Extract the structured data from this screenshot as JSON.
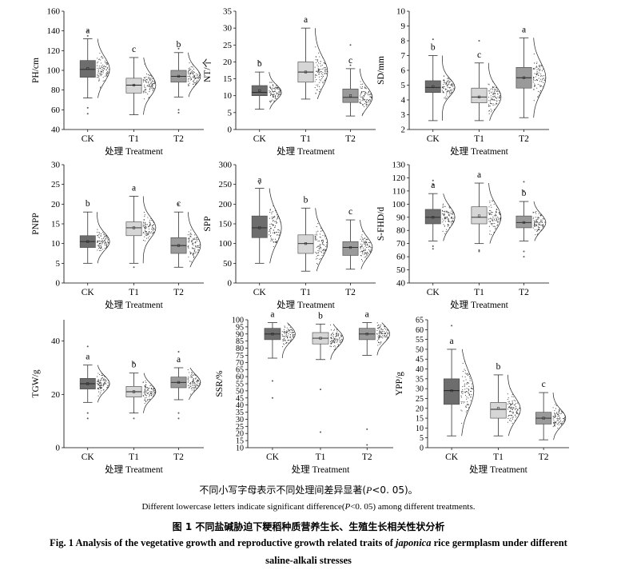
{
  "box_colors": [
    "#6d6d6d",
    "#d6d6d6",
    "#9a9a9a"
  ],
  "caption": {
    "note_cn_pre": "不同小写字母表示不同处理间差异显著(",
    "note_cn_p": "P",
    "note_cn_post": "<0. 05)。",
    "note_en_pre": "Different lowercase letters indicate significant difference(",
    "note_en_p": "P",
    "note_en_post": "<0. 05) among different treatments.",
    "fig_cn": "图 1   不同盐碱胁迫下粳稻种质营养生长、生殖生长相关性状分析",
    "fig_en_pre": "Fig. 1    Analysis of the vegetative growth and reproductive growth related traits of ",
    "fig_en_italic": "japonica",
    "fig_en_post": " rice germplasm under different",
    "fig_en_line2": "saline-alkali stresses"
  },
  "chart_data": [
    {
      "type": "box",
      "ylabel": "PH/cm",
      "xlabel": "处理  Treatment",
      "categories": [
        "CK",
        "T1",
        "T2"
      ],
      "ylim": [
        40,
        160
      ],
      "yticks": [
        40,
        60,
        80,
        100,
        120,
        140,
        160
      ],
      "boxes": [
        {
          "whisker_low": 72,
          "q1": 93,
          "median": 101,
          "q3": 110,
          "whisker_high": 132,
          "mean": 102,
          "letter": "a",
          "outliers": [
            62,
            56,
            135,
            140
          ]
        },
        {
          "whisker_low": 55,
          "q1": 77,
          "median": 85,
          "q3": 92,
          "whisker_high": 113,
          "mean": 85,
          "letter": "c",
          "outliers": []
        },
        {
          "whisker_low": 73,
          "q1": 88,
          "median": 94,
          "q3": 100,
          "whisker_high": 118,
          "mean": 94,
          "letter": "b",
          "outliers": [
            60,
            57,
            122
          ]
        }
      ]
    },
    {
      "type": "box",
      "ylabel": "NT/个",
      "xlabel": "处理  Treatment",
      "categories": [
        "CK",
        "T1",
        "T2"
      ],
      "ylim": [
        0,
        35
      ],
      "yticks": [
        0,
        5,
        10,
        15,
        20,
        25,
        30,
        35
      ],
      "boxes": [
        {
          "whisker_low": 6,
          "q1": 10,
          "median": 11,
          "q3": 13,
          "whisker_high": 17,
          "mean": 11.5,
          "letter": "b",
          "outliers": [
            20
          ]
        },
        {
          "whisker_low": 9,
          "q1": 14,
          "median": 17,
          "q3": 20,
          "whisker_high": 30,
          "mean": 17,
          "letter": "a",
          "outliers": []
        },
        {
          "whisker_low": 4,
          "q1": 8,
          "median": 9.5,
          "q3": 12,
          "whisker_high": 18,
          "mean": 10,
          "letter": "c",
          "outliers": [
            19,
            25
          ]
        }
      ]
    },
    {
      "type": "box",
      "ylabel": "SD/mm",
      "xlabel": "处理  Treatment",
      "categories": [
        "CK",
        "T1",
        "T2"
      ],
      "ylim": [
        2,
        10
      ],
      "yticks": [
        2,
        3,
        4,
        5,
        6,
        7,
        8,
        9,
        10
      ],
      "boxes": [
        {
          "whisker_low": 2.6,
          "q1": 4.5,
          "median": 4.85,
          "q3": 5.3,
          "whisker_high": 7,
          "mean": 4.9,
          "letter": "b",
          "outliers": [
            8.1
          ]
        },
        {
          "whisker_low": 2.6,
          "q1": 3.8,
          "median": 4.2,
          "q3": 4.8,
          "whisker_high": 6.5,
          "mean": 4.2,
          "letter": "c",
          "outliers": [
            8
          ]
        },
        {
          "whisker_low": 2.8,
          "q1": 4.8,
          "median": 5.5,
          "q3": 6.2,
          "whisker_high": 8.2,
          "mean": 5.5,
          "letter": "a",
          "outliers": []
        }
      ]
    },
    {
      "type": "box",
      "ylabel": "PNPP",
      "xlabel": "处理  Treatment",
      "categories": [
        "CK",
        "T1",
        "T2"
      ],
      "ylim": [
        0,
        30
      ],
      "yticks": [
        0,
        5,
        10,
        15,
        20,
        25,
        30
      ],
      "boxes": [
        {
          "whisker_low": 5,
          "q1": 9,
          "median": 10.5,
          "q3": 12,
          "whisker_high": 18,
          "mean": 10.5,
          "letter": "b",
          "outliers": []
        },
        {
          "whisker_low": 5,
          "q1": 12,
          "median": 14,
          "q3": 15.5,
          "whisker_high": 22,
          "mean": 14,
          "letter": "a",
          "outliers": [
            4
          ]
        },
        {
          "whisker_low": 4,
          "q1": 7.5,
          "median": 9.5,
          "q3": 11.5,
          "whisker_high": 18,
          "mean": 9.5,
          "letter": "c",
          "outliers": [
            20
          ]
        }
      ]
    },
    {
      "type": "box",
      "ylabel": "SPP",
      "xlabel": "处理  Treatment",
      "categories": [
        "CK",
        "T1",
        "T2"
      ],
      "ylim": [
        0,
        300
      ],
      "yticks": [
        0,
        50,
        100,
        150,
        200,
        250,
        300
      ],
      "boxes": [
        {
          "whisker_low": 50,
          "q1": 115,
          "median": 140,
          "q3": 170,
          "whisker_high": 240,
          "mean": 140,
          "letter": "a",
          "outliers": [
            252
          ]
        },
        {
          "whisker_low": 30,
          "q1": 75,
          "median": 100,
          "q3": 122,
          "whisker_high": 190,
          "mean": 100,
          "letter": "b",
          "outliers": []
        },
        {
          "whisker_low": 35,
          "q1": 70,
          "median": 90,
          "q3": 105,
          "whisker_high": 160,
          "mean": 90,
          "letter": "c",
          "outliers": []
        }
      ]
    },
    {
      "type": "box",
      "ylabel": "S-FHD/d",
      "xlabel": "处理  Treatment",
      "categories": [
        "CK",
        "T1",
        "T2"
      ],
      "ylim": [
        40,
        130
      ],
      "yticks": [
        40,
        50,
        60,
        70,
        80,
        90,
        100,
        110,
        120,
        130
      ],
      "boxes": [
        {
          "whisker_low": 72,
          "q1": 85,
          "median": 90,
          "q3": 96,
          "whisker_high": 108,
          "mean": 90,
          "letter": "a",
          "outliers": [
            68,
            66,
            115,
            118
          ]
        },
        {
          "whisker_low": 70,
          "q1": 85,
          "median": 90,
          "q3": 98,
          "whisker_high": 116,
          "mean": 91,
          "letter": "a",
          "outliers": [
            65,
            64
          ]
        },
        {
          "whisker_low": 72,
          "q1": 82,
          "median": 86,
          "q3": 91,
          "whisker_high": 102,
          "mean": 86,
          "letter": "b",
          "outliers": [
            64,
            60,
            110,
            117
          ]
        }
      ]
    },
    {
      "type": "box",
      "ylabel": "TGW/g",
      "xlabel": "处理  Treatment",
      "categories": [
        "CK",
        "T1",
        "T2"
      ],
      "ylim": [
        0,
        48
      ],
      "yticks": [
        0,
        20,
        40
      ],
      "boxes": [
        {
          "whisker_low": 17,
          "q1": 22,
          "median": 24,
          "q3": 26,
          "whisker_high": 31,
          "mean": 24,
          "letter": "a",
          "outliers": [
            13,
            11,
            38
          ]
        },
        {
          "whisker_low": 13,
          "q1": 19,
          "median": 21,
          "q3": 23,
          "whisker_high": 28,
          "mean": 21,
          "letter": "b",
          "outliers": [
            11,
            32
          ]
        },
        {
          "whisker_low": 18,
          "q1": 22.5,
          "median": 24.5,
          "q3": 26.5,
          "whisker_high": 30,
          "mean": 24.5,
          "letter": "a",
          "outliers": [
            13,
            11,
            36
          ]
        }
      ]
    },
    {
      "type": "box",
      "ylabel": "SSR/%",
      "xlabel": "处理  Treatment",
      "categories": [
        "CK",
        "T1",
        "T2"
      ],
      "ylim": [
        10,
        100
      ],
      "yticks": [
        10,
        15,
        20,
        25,
        30,
        35,
        40,
        45,
        50,
        55,
        60,
        65,
        70,
        75,
        80,
        85,
        90,
        95,
        100
      ],
      "boxes": [
        {
          "whisker_low": 73,
          "q1": 86,
          "median": 90,
          "q3": 94,
          "whisker_high": 98,
          "mean": 90,
          "letter": "a",
          "outliers": [
            57,
            45
          ]
        },
        {
          "whisker_low": 72,
          "q1": 83,
          "median": 87,
          "q3": 91,
          "whisker_high": 97,
          "mean": 87,
          "letter": "b",
          "outliers": [
            51,
            21
          ]
        },
        {
          "whisker_low": 75,
          "q1": 86,
          "median": 90,
          "q3": 94,
          "whisker_high": 98,
          "mean": 90,
          "letter": "a",
          "outliers": [
            23,
            12
          ]
        }
      ]
    },
    {
      "type": "box",
      "ylabel": "YPP/g",
      "xlabel": "处理  Treatment",
      "categories": [
        "CK",
        "T1",
        "T2"
      ],
      "ylim": [
        0,
        65
      ],
      "yticks": [
        0,
        5,
        10,
        15,
        20,
        25,
        30,
        35,
        40,
        45,
        50,
        55,
        60,
        65
      ],
      "boxes": [
        {
          "whisker_low": 6,
          "q1": 22,
          "median": 29,
          "q3": 35,
          "whisker_high": 50,
          "mean": 29,
          "letter": "a",
          "outliers": [
            62
          ]
        },
        {
          "whisker_low": 6,
          "q1": 15,
          "median": 19.5,
          "q3": 23,
          "whisker_high": 37,
          "mean": 20,
          "letter": "b",
          "outliers": []
        },
        {
          "whisker_low": 4,
          "q1": 12,
          "median": 15,
          "q3": 18,
          "whisker_high": 28,
          "mean": 15,
          "letter": "c",
          "outliers": []
        }
      ]
    }
  ]
}
